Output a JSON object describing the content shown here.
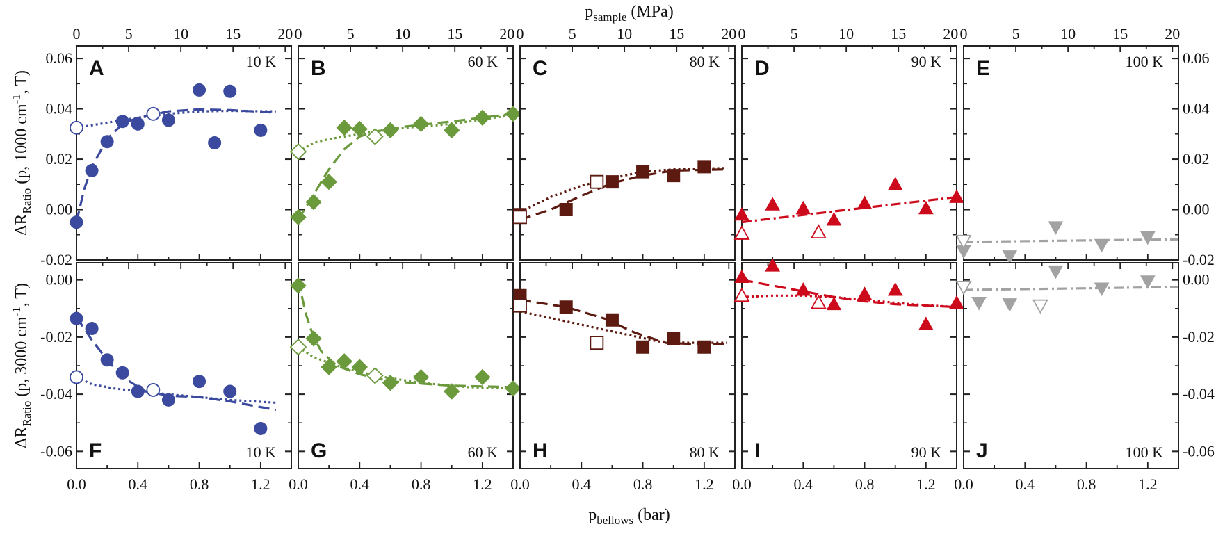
{
  "chart_data": {
    "type": "scatter",
    "top_axis": {
      "label_main": "p",
      "label_sub": "sample",
      "label_rest": " (MPa)",
      "ticks": [
        0,
        5,
        10,
        15,
        20
      ],
      "bar_to_mpa": 14.7
    },
    "bottom_axis": {
      "label_main": "p",
      "label_sub": "bellows",
      "label_rest": " (bar)",
      "ticks": [
        0.0,
        0.4,
        0.8,
        1.2
      ],
      "tick_labels": [
        "0.0",
        "0.4",
        "0.8",
        "1.2"
      ],
      "xlim": [
        0,
        1.4
      ]
    },
    "rows": [
      {
        "ylabel": {
          "delta": "ΔR",
          "sub": "Ratio",
          "mid": " (p, 1000 cm",
          "sup": "-1",
          "end": ", T)"
        },
        "ylim": [
          -0.02,
          0.065
        ],
        "ticks": [
          -0.02,
          0.0,
          0.02,
          0.04,
          0.06
        ],
        "tick_labels": [
          "-0.02",
          "0.00",
          "0.02",
          "0.04",
          "0.06"
        ]
      },
      {
        "ylabel": {
          "delta": "ΔR",
          "sub": "Ratio",
          "mid": " (p, 3000 cm",
          "sup": "-1",
          "end": ", T)"
        },
        "ylim": [
          -0.066,
          0.006
        ],
        "ticks": [
          -0.06,
          -0.04,
          -0.02,
          0.0
        ],
        "tick_labels": [
          "-0.06",
          "-0.04",
          "-0.02",
          "0.00"
        ]
      }
    ],
    "panels": [
      {
        "letter": "A",
        "temp": "10 K",
        "row": 0,
        "col": 0,
        "color": "#3b4a9e",
        "marker": "circle",
        "filled": {
          "x": [
            0,
            0.1,
            0.2,
            0.3,
            0.4,
            0.6,
            0.8,
            0.9,
            1.0,
            1.2
          ],
          "y": [
            -0.005,
            0.0155,
            0.027,
            0.035,
            0.034,
            0.0355,
            0.0475,
            0.0265,
            0.047,
            0.0315
          ]
        },
        "open": {
          "x": [
            0,
            0.5
          ],
          "y": [
            0.0325,
            0.038
          ]
        },
        "fits": [
          {
            "style": "dashed",
            "x": [
              0,
              0.05,
              0.1,
              0.2,
              0.3,
              0.4,
              0.6,
              0.8,
              1.0,
              1.3
            ],
            "y": [
              -0.005,
              0.008,
              0.017,
              0.028,
              0.034,
              0.0365,
              0.039,
              0.0398,
              0.0395,
              0.0385
            ]
          },
          {
            "style": "dotted",
            "x": [
              0,
              0.2,
              0.4,
              0.6,
              0.8,
              1.0,
              1.3
            ],
            "y": [
              0.0325,
              0.0345,
              0.0365,
              0.038,
              0.039,
              0.0392,
              0.039
            ]
          }
        ]
      },
      {
        "letter": "B",
        "temp": "60 K",
        "row": 0,
        "col": 1,
        "color": "#6b9a3c",
        "marker": "diamond",
        "filled": {
          "x": [
            0,
            0.1,
            0.2,
            0.3,
            0.4,
            0.6,
            0.8,
            1.0,
            1.2,
            1.4
          ],
          "y": [
            -0.003,
            0.003,
            0.011,
            0.0325,
            0.032,
            0.0315,
            0.034,
            0.0315,
            0.0365,
            0.038
          ]
        },
        "open": {
          "x": [
            0,
            0.5
          ],
          "y": [
            0.023,
            0.029
          ]
        },
        "fits": [
          {
            "style": "dashed",
            "x": [
              0,
              0.1,
              0.2,
              0.3,
              0.4,
              0.5,
              0.7,
              1.0,
              1.4
            ],
            "y": [
              -0.004,
              0.006,
              0.016,
              0.024,
              0.029,
              0.031,
              0.033,
              0.035,
              0.038
            ]
          },
          {
            "style": "dotted",
            "x": [
              0,
              0.1,
              0.2,
              0.35,
              0.5,
              0.7,
              1.0,
              1.4
            ],
            "y": [
              0.023,
              0.0265,
              0.028,
              0.0295,
              0.031,
              0.0325,
              0.034,
              0.0375
            ]
          }
        ]
      },
      {
        "letter": "C",
        "temp": "80 K",
        "row": 0,
        "col": 2,
        "color": "#5c1a10",
        "marker": "square",
        "filled": {
          "x": [
            0,
            0.3,
            0.6,
            0.8,
            1.0,
            1.2
          ],
          "y": [
            -0.002,
            0.0,
            0.011,
            0.015,
            0.0135,
            0.017
          ]
        },
        "open": {
          "x": [
            0,
            0.5
          ],
          "y": [
            -0.003,
            0.011
          ]
        },
        "fits": [
          {
            "style": "dashed",
            "x": [
              0,
              0.2,
              0.4,
              0.6,
              0.8,
              1.0,
              1.35
            ],
            "y": [
              -0.004,
              0.0,
              0.0055,
              0.0105,
              0.0135,
              0.0155,
              0.016
            ]
          },
          {
            "style": "dotted",
            "x": [
              0,
              0.2,
              0.4,
              0.6,
              0.8,
              1.0,
              1.35
            ],
            "y": [
              -0.001,
              0.005,
              0.0095,
              0.0125,
              0.015,
              0.016,
              0.0165
            ]
          }
        ]
      },
      {
        "letter": "D",
        "temp": "90 K",
        "row": 0,
        "col": 3,
        "color": "#cc0a1c",
        "marker": "triangle-up",
        "filled": {
          "x": [
            0,
            0.2,
            0.4,
            0.6,
            0.8,
            1.0,
            1.2,
            1.4
          ],
          "y": [
            -0.002,
            0.002,
            0.0005,
            -0.004,
            0.0025,
            0.01,
            0.0005,
            0.005
          ]
        },
        "open": {
          "x": [
            0,
            0.5
          ],
          "y": [
            -0.0095,
            -0.009
          ]
        },
        "fits": [
          {
            "style": "dashdot",
            "x": [
              0,
              1.4
            ],
            "y": [
              -0.005,
              0.005
            ]
          }
        ]
      },
      {
        "letter": "E",
        "temp": "100 K",
        "row": 0,
        "col": 4,
        "color": "#a2a2a2",
        "marker": "triangle-down",
        "filled": {
          "x": [
            0,
            0.3,
            0.6,
            0.9,
            1.2
          ],
          "y": [
            -0.0165,
            -0.0185,
            -0.007,
            -0.014,
            -0.011
          ]
        },
        "open": {
          "x": [
            0
          ],
          "y": [
            -0.0125
          ]
        },
        "fits": [
          {
            "style": "dashdot",
            "x": [
              0,
              1.4
            ],
            "y": [
              -0.0128,
              -0.0118
            ]
          }
        ]
      },
      {
        "letter": "F",
        "temp": "10 K",
        "row": 1,
        "col": 0,
        "color": "#3b4a9e",
        "marker": "circle",
        "filled": {
          "x": [
            0,
            0.1,
            0.2,
            0.3,
            0.4,
            0.6,
            0.8,
            1.0,
            1.2
          ],
          "y": [
            -0.0135,
            -0.017,
            -0.028,
            -0.0325,
            -0.039,
            -0.042,
            -0.0355,
            -0.039,
            -0.052
          ]
        },
        "open": {
          "x": [
            0,
            0.5
          ],
          "y": [
            -0.034,
            -0.0385
          ]
        },
        "fits": [
          {
            "style": "dashed",
            "x": [
              0,
              0.1,
              0.2,
              0.3,
              0.45,
              0.6,
              0.8,
              1.0,
              1.3
            ],
            "y": [
              -0.013,
              -0.021,
              -0.028,
              -0.034,
              -0.039,
              -0.0405,
              -0.041,
              -0.0425,
              -0.0455
            ]
          },
          {
            "style": "dotted",
            "x": [
              0,
              0.1,
              0.25,
              0.5,
              0.8,
              1.0,
              1.3
            ],
            "y": [
              -0.034,
              -0.0365,
              -0.038,
              -0.0395,
              -0.041,
              -0.042,
              -0.043
            ]
          }
        ]
      },
      {
        "letter": "G",
        "temp": "60 K",
        "row": 1,
        "col": 1,
        "color": "#6b9a3c",
        "marker": "diamond",
        "filled": {
          "x": [
            0,
            0.1,
            0.2,
            0.3,
            0.4,
            0.6,
            0.8,
            1.0,
            1.2,
            1.4
          ],
          "y": [
            -0.002,
            -0.0205,
            -0.0305,
            -0.0285,
            -0.0305,
            -0.036,
            -0.034,
            -0.039,
            -0.034,
            -0.038
          ]
        },
        "open": {
          "x": [
            0,
            0.5
          ],
          "y": [
            -0.0235,
            -0.0335
          ]
        },
        "fits": [
          {
            "style": "dashed",
            "x": [
              0,
              0.05,
              0.1,
              0.15,
              0.25,
              0.4,
              0.6,
              1.0,
              1.4
            ],
            "y": [
              0.0,
              -0.012,
              -0.02,
              -0.025,
              -0.03,
              -0.033,
              -0.0355,
              -0.037,
              -0.0375
            ]
          },
          {
            "style": "dotted",
            "x": [
              0,
              0.1,
              0.25,
              0.5,
              0.8,
              1.1,
              1.4
            ],
            "y": [
              -0.0235,
              -0.027,
              -0.03,
              -0.0335,
              -0.036,
              -0.0375,
              -0.038
            ]
          }
        ]
      },
      {
        "letter": "H",
        "temp": "80 K",
        "row": 1,
        "col": 2,
        "color": "#5c1a10",
        "marker": "square",
        "filled": {
          "x": [
            0,
            0.3,
            0.6,
            0.8,
            1.0,
            1.2
          ],
          "y": [
            -0.0055,
            -0.0095,
            -0.014,
            -0.0235,
            -0.0205,
            -0.0235
          ]
        },
        "open": {
          "x": [
            0,
            0.5
          ],
          "y": [
            -0.009,
            -0.022
          ]
        },
        "fits": [
          {
            "style": "dashed",
            "x": [
              0,
              0.3,
              0.55,
              0.75,
              0.95,
              1.15,
              1.35
            ],
            "y": [
              -0.007,
              -0.0095,
              -0.0135,
              -0.0185,
              -0.022,
              -0.0225,
              -0.0225
            ]
          },
          {
            "style": "dotted",
            "x": [
              0,
              0.3,
              0.6,
              0.9,
              1.1,
              1.35
            ],
            "y": [
              -0.011,
              -0.0145,
              -0.018,
              -0.0215,
              -0.022,
              -0.022
            ]
          }
        ]
      },
      {
        "letter": "I",
        "temp": "90 K",
        "row": 1,
        "col": 3,
        "color": "#cc0a1c",
        "marker": "triangle-up",
        "filled": {
          "x": [
            0,
            0.2,
            0.4,
            0.6,
            0.8,
            1.0,
            1.2,
            1.4
          ],
          "y": [
            0.001,
            0.005,
            -0.0035,
            -0.0085,
            -0.005,
            -0.0035,
            -0.0155,
            -0.008
          ]
        },
        "open": {
          "x": [
            0,
            0.5
          ],
          "y": [
            -0.0055,
            -0.008
          ]
        },
        "fits": [
          {
            "style": "dashed",
            "x": [
              0,
              0.2,
              0.4,
              0.6,
              0.8,
              1.0,
              1.4
            ],
            "y": [
              0.0,
              -0.002,
              -0.004,
              -0.006,
              -0.0075,
              -0.0085,
              -0.0095
            ]
          },
          {
            "style": "dotted",
            "x": [
              0,
              0.2,
              0.4,
              0.6,
              0.8,
              1.1,
              1.4
            ],
            "y": [
              -0.006,
              -0.0055,
              -0.0055,
              -0.006,
              -0.007,
              -0.0085,
              -0.0095
            ]
          }
        ]
      },
      {
        "letter": "J",
        "temp": "100 K",
        "row": 1,
        "col": 4,
        "color": "#a2a2a2",
        "marker": "triangle-down",
        "filled": {
          "x": [
            0.1,
            0.3,
            0.6,
            0.9,
            1.2
          ],
          "y": [
            -0.008,
            -0.0085,
            0.003,
            -0.003,
            -0.0005
          ]
        },
        "open": {
          "x": [
            0,
            0.5
          ],
          "y": [
            -0.0025,
            -0.009
          ]
        },
        "fits": [
          {
            "style": "dashdot",
            "x": [
              0,
              1.4
            ],
            "y": [
              -0.0035,
              -0.0025
            ]
          }
        ]
      }
    ]
  }
}
